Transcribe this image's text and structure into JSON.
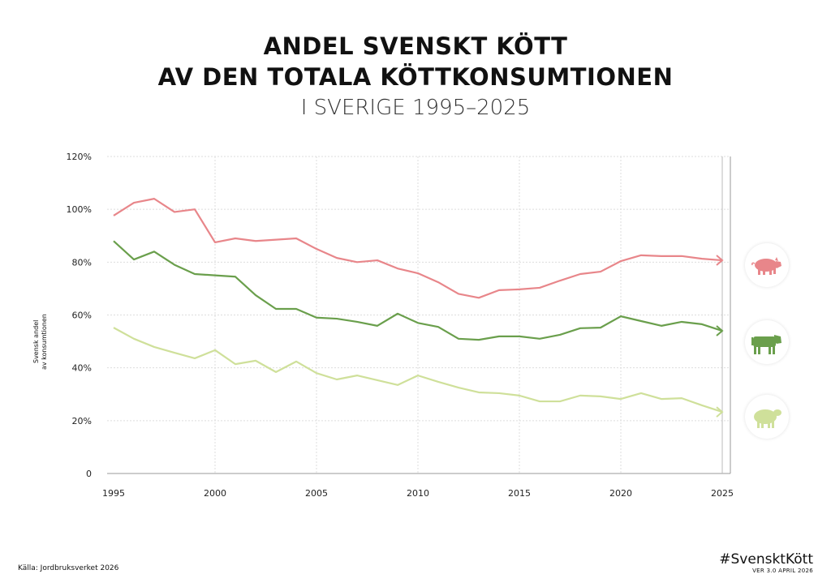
{
  "title_line1": "ANDEL SVENSKT KÖTT",
  "title_line2": "AV DEN TOTALA KÖTTKONSUMTIONEN",
  "subtitle": "I SVERIGE 1995–2025",
  "source": "Källa: Jordbruksverket 2026",
  "hashtag": "#SvensktKött",
  "version": "VER 3.0 APRIL 2026",
  "chart_data": {
    "type": "line",
    "ylabel_line1": "Svensk andel",
    "ylabel_line2": "av konsumtionen",
    "xlim": [
      1995,
      2025
    ],
    "ylim": [
      0,
      120
    ],
    "grid": true,
    "x_ticks": [
      "1995",
      "2000",
      "2005",
      "2010",
      "2015",
      "2020",
      "2025"
    ],
    "y_ticks": [
      "0",
      "20%",
      "40%",
      "60%",
      "80%",
      "100%",
      "120%"
    ],
    "x": [
      1995,
      1996,
      1997,
      1998,
      1999,
      2000,
      2001,
      2002,
      2003,
      2004,
      2005,
      2006,
      2007,
      2008,
      2009,
      2010,
      2011,
      2012,
      2013,
      2014,
      2015,
      2016,
      2017,
      2018,
      2019,
      2020,
      2021,
      2022,
      2023,
      2024,
      2025
    ],
    "series": [
      {
        "icon": "pig-icon",
        "color": "#e8868a",
        "values": [
          97.6,
          102.5,
          104,
          99,
          100,
          87.5,
          89,
          88,
          88.5,
          89,
          85,
          81.6,
          80,
          80.7,
          77.6,
          75.8,
          72.4,
          68,
          66.5,
          69.4,
          69.7,
          70.3,
          73,
          75.5,
          76.4,
          80.4,
          82.6,
          82.3,
          82.3,
          81.3,
          80.7
        ]
      },
      {
        "icon": "cow-icon",
        "color": "#6a9f4c",
        "values": [
          88,
          81,
          84,
          79,
          75.5,
          75,
          74.5,
          67.5,
          62.3,
          62.3,
          59,
          58.6,
          57.4,
          55.9,
          60.5,
          57,
          55.5,
          51,
          50.6,
          51.9,
          51.9,
          51,
          52.5,
          55,
          55.2,
          59.5,
          57.7,
          55.9,
          57.4,
          56.5,
          54
        ]
      },
      {
        "icon": "sheep-icon",
        "color": "#cfe09a",
        "values": [
          55.2,
          51,
          47.9,
          45.7,
          43.6,
          46.7,
          41.4,
          42.7,
          38.4,
          42.4,
          38,
          35.6,
          37.1,
          35.3,
          33.5,
          37.1,
          34.7,
          32.5,
          30.7,
          30.4,
          29.5,
          27.3,
          27.3,
          29.5,
          29.2,
          28.2,
          30.4,
          28.2,
          28.5,
          25.8,
          23.3
        ]
      }
    ]
  }
}
